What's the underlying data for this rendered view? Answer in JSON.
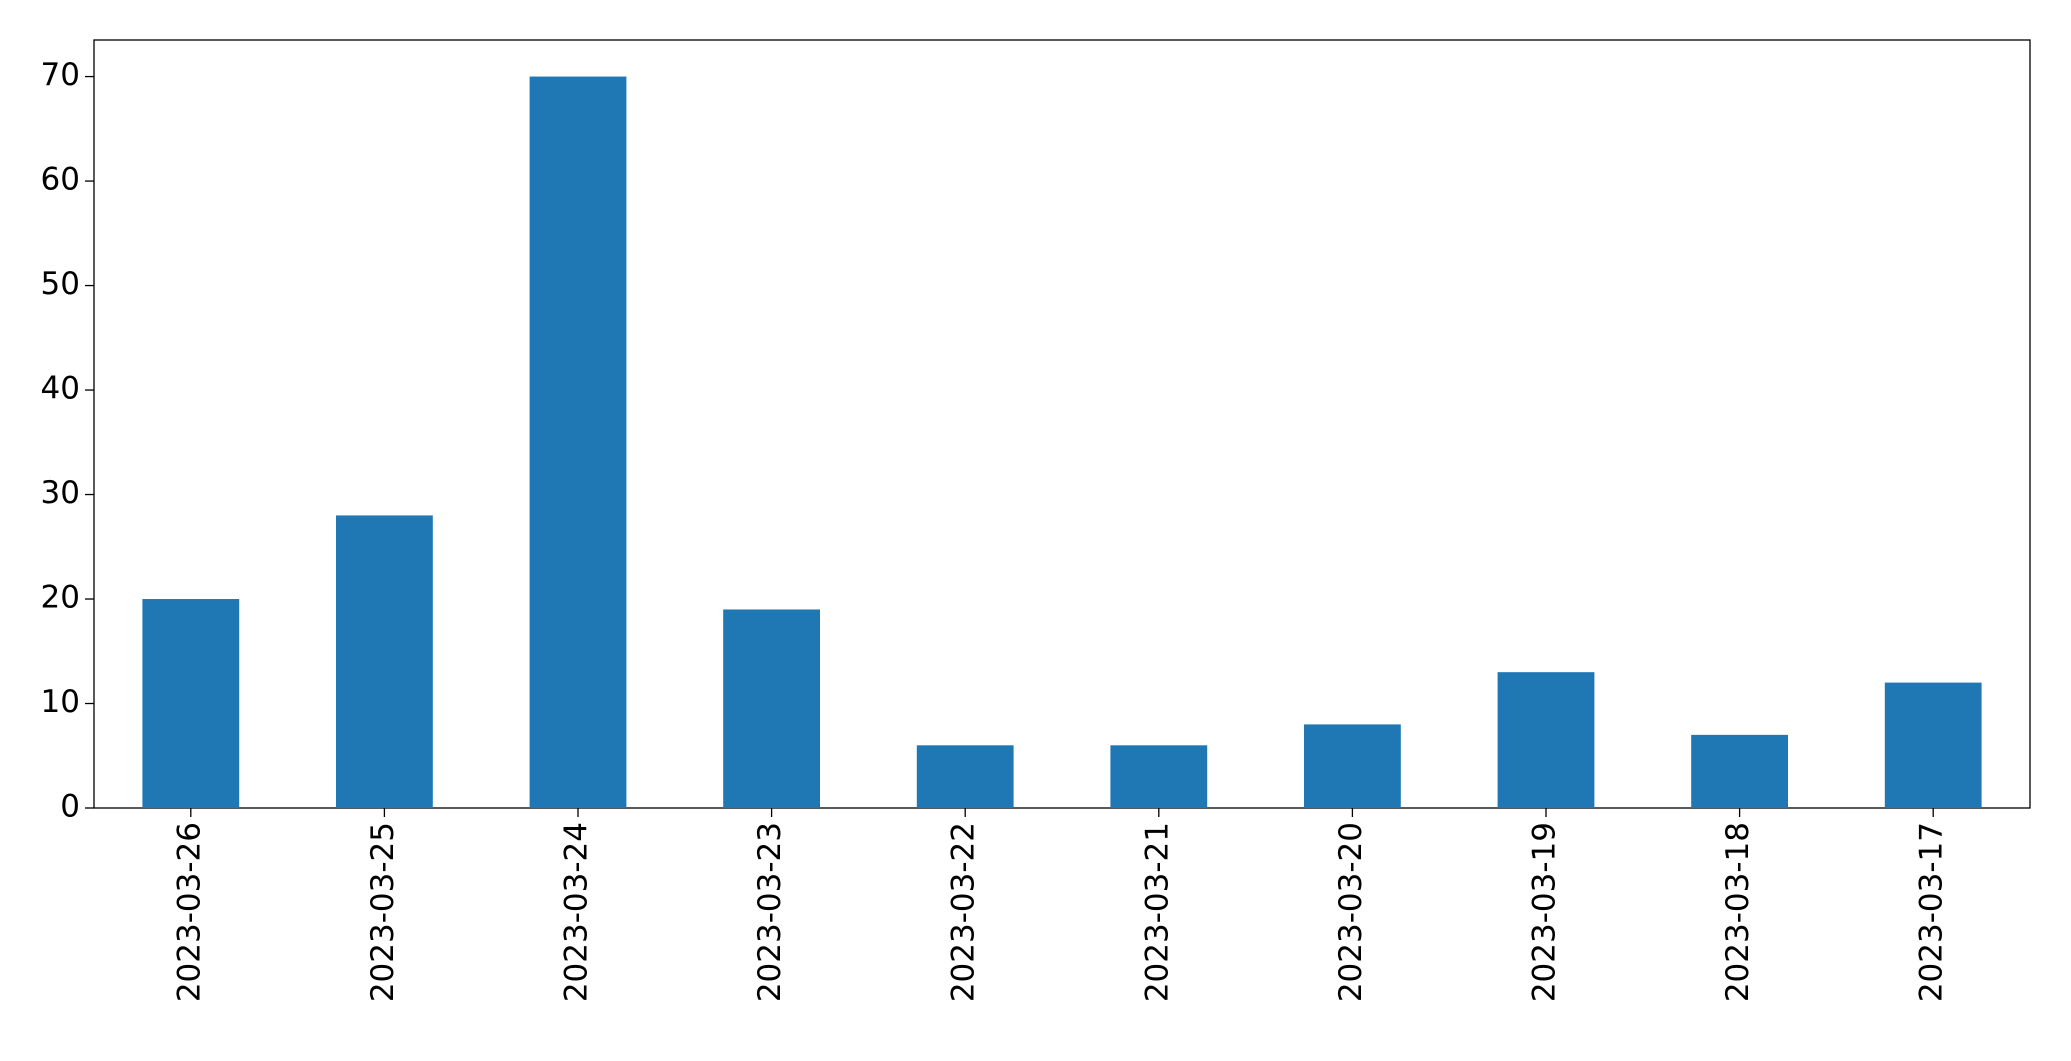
{
  "chart_data": {
    "type": "bar",
    "categories": [
      "2023-03-26",
      "2023-03-25",
      "2023-03-24",
      "2023-03-23",
      "2023-03-22",
      "2023-03-21",
      "2023-03-20",
      "2023-03-19",
      "2023-03-18",
      "2023-03-17"
    ],
    "values": [
      20,
      28,
      70,
      19,
      6,
      6,
      8,
      13,
      7,
      12
    ],
    "color": "#1f77b4",
    "ylim": [
      0,
      73.5
    ],
    "yticks": [
      0,
      10,
      20,
      30,
      40,
      50,
      60,
      70
    ],
    "grid": false
  }
}
